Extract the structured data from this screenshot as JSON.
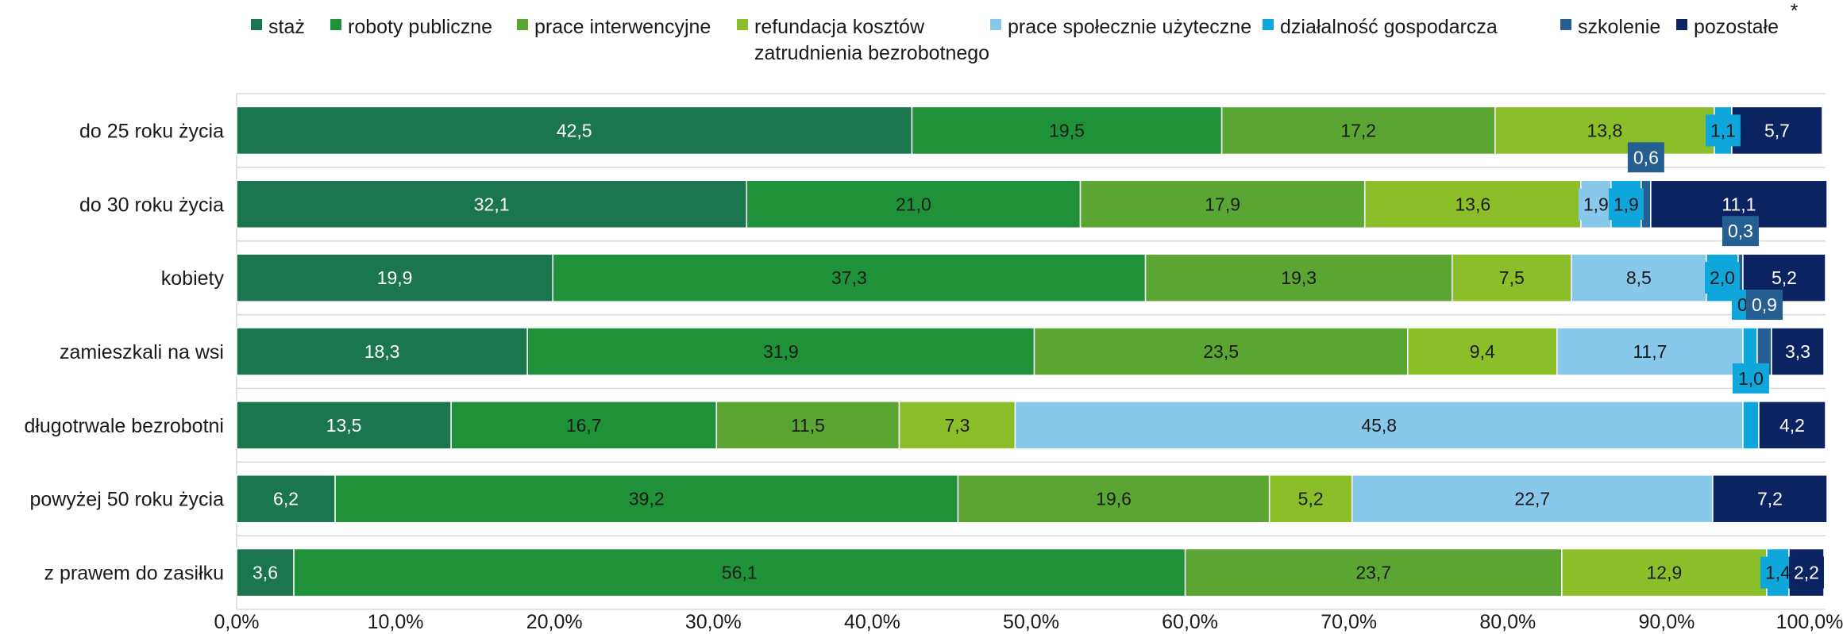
{
  "chart_data": {
    "type": "bar",
    "orientation": "horizontal",
    "stacked": true,
    "percent_stacked": true,
    "title": "",
    "xlabel": "",
    "ylabel": "",
    "xlim": [
      0,
      100
    ],
    "grid": "horizontal-only",
    "legend_position": "top",
    "x_ticks": [
      "0,0%",
      "10,0%",
      "20,0%",
      "30,0%",
      "40,0%",
      "50,0%",
      "60,0%",
      "70,0%",
      "80,0%",
      "90,0%",
      "100,0%"
    ],
    "categories": [
      "do 25 roku życia",
      "do 30 roku życia",
      "kobiety",
      "zamieszkali na wsi",
      "długotrwale bezrobotni",
      "powyżej 50 roku życia",
      "z prawem do zasiłku"
    ],
    "series": [
      {
        "name": "staż",
        "color": "#1b7650",
        "label_color": "#ffffff",
        "values": [
          42.5,
          32.1,
          19.9,
          18.3,
          13.5,
          6.2,
          3.6
        ],
        "labels": [
          "42,5",
          "32,1",
          "19,9",
          "18,3",
          "13,5",
          "6,2",
          "3,6"
        ]
      },
      {
        "name": "roboty publiczne",
        "color": "#1f9138",
        "label_color": "#1a1a1a",
        "values": [
          19.5,
          21.0,
          37.3,
          31.9,
          16.7,
          39.2,
          56.1
        ],
        "labels": [
          "19,5",
          "21,0",
          "37,3",
          "31,9",
          "16,7",
          "39,2",
          "56,1"
        ]
      },
      {
        "name": "prace interwencyjne",
        "color": "#5ba632",
        "label_color": "#1a1a1a",
        "values": [
          17.2,
          17.9,
          19.3,
          23.5,
          11.5,
          19.6,
          23.7
        ],
        "labels": [
          "17,2",
          "17,9",
          "19,3",
          "23,5",
          "11,5",
          "19,6",
          "23,7"
        ]
      },
      {
        "name": "refundacja kosztów zatrudnienia bezrobotnego",
        "legend_lines": [
          "refundacja kosztów",
          "zatrudnienia bezrobotnego"
        ],
        "color": "#8bbf2a",
        "label_color": "#1a1a1a",
        "values": [
          13.8,
          13.6,
          7.5,
          9.4,
          7.3,
          5.2,
          12.9
        ],
        "labels": [
          "13,8",
          "13,6",
          "7,5",
          "9,4",
          "7,3",
          "5,2",
          "12,9"
        ]
      },
      {
        "name": "prace społecznie użyteczne",
        "color": "#88c8eb",
        "label_color": "#1a1a1a",
        "values": [
          0,
          1.9,
          8.5,
          11.7,
          45.8,
          22.7,
          0
        ],
        "labels": [
          "",
          "1,9",
          "8,5",
          "11,7",
          "45,8",
          "22,7",
          ""
        ]
      },
      {
        "name": "działalność gospodarcza",
        "color": "#0fa6dc",
        "label_color": "#1a1a1a",
        "values": [
          1.1,
          1.9,
          2.0,
          0.9,
          1.0,
          0,
          1.4
        ],
        "labels": [
          "1,1",
          "1,9",
          "2,0",
          "0,9",
          "1,0",
          "",
          "1,4"
        ]
      },
      {
        "name": "szkolenie",
        "color": "#255f91",
        "label_color": "#ffffff",
        "values": [
          0,
          0.6,
          0.3,
          0.9,
          0,
          0,
          0
        ],
        "labels": [
          "",
          "0,6",
          "0,3",
          "0,9",
          "",
          "",
          ""
        ]
      },
      {
        "name": "pozostałe",
        "legend_mark": "*",
        "color": "#0b2360",
        "label_color": "#ffffff",
        "values": [
          5.7,
          11.1,
          5.2,
          3.3,
          4.2,
          7.2,
          2.2
        ],
        "labels": [
          "5,7",
          "11,1",
          "5,2",
          "3,3",
          "4,2",
          "7,2",
          "2,2"
        ]
      }
    ]
  }
}
